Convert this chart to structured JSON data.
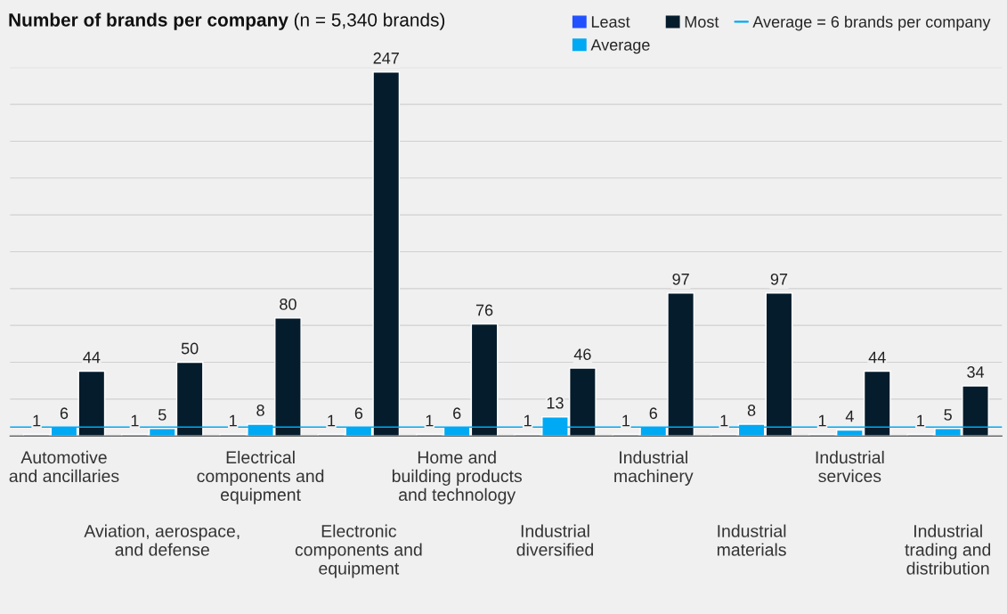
{
  "chart_data": {
    "type": "bar",
    "title": "Number of brands per company",
    "subtitle": "(n = 5,340 brands)",
    "categories": [
      "Automotive\nand ancillaries",
      "Aviation, aerospace,\nand defense",
      "Electrical\ncomponents and\nequipment",
      "Electronic\ncomponents and\nequipment",
      "Home and\nbuilding products\nand technology",
      "Industrial\ndiversified",
      "Industrial\nmachinery",
      "Industrial\nmaterials",
      "Industrial\nservices",
      "Industrial\ntrading and\ndistribution"
    ],
    "series": [
      {
        "name": "Least",
        "color": "#2251ff",
        "values": [
          1,
          1,
          1,
          1,
          1,
          1,
          1,
          1,
          1,
          1
        ]
      },
      {
        "name": "Average",
        "color": "#00a9f4",
        "values": [
          6,
          5,
          8,
          6,
          6,
          13,
          6,
          8,
          4,
          5
        ]
      },
      {
        "name": "Most",
        "color": "#051c2c",
        "values": [
          44,
          50,
          80,
          247,
          76,
          46,
          97,
          97,
          44,
          34
        ]
      }
    ],
    "ylim": [
      0,
      250
    ],
    "yticks": [
      {
        "value": 0,
        "label": null
      },
      {
        "value": 25,
        "label": null
      },
      {
        "value": 50,
        "label": null
      },
      {
        "value": 75,
        "label": null
      },
      {
        "value": 100,
        "label": null
      },
      {
        "value": 125,
        "label": null
      },
      {
        "value": 150,
        "label": null
      },
      {
        "value": 175,
        "label": null
      },
      {
        "value": 200,
        "label": null
      },
      {
        "value": 225,
        "label": null
      },
      {
        "value": 250,
        "label": null
      }
    ],
    "ref_lines": [
      {
        "axis": "y",
        "value": 6,
        "label": "Average = 6 brands per company",
        "color": "#00a9f4"
      }
    ],
    "data_labels": true,
    "grid": "y",
    "legend": "top right",
    "tick_labels": "x"
  }
}
